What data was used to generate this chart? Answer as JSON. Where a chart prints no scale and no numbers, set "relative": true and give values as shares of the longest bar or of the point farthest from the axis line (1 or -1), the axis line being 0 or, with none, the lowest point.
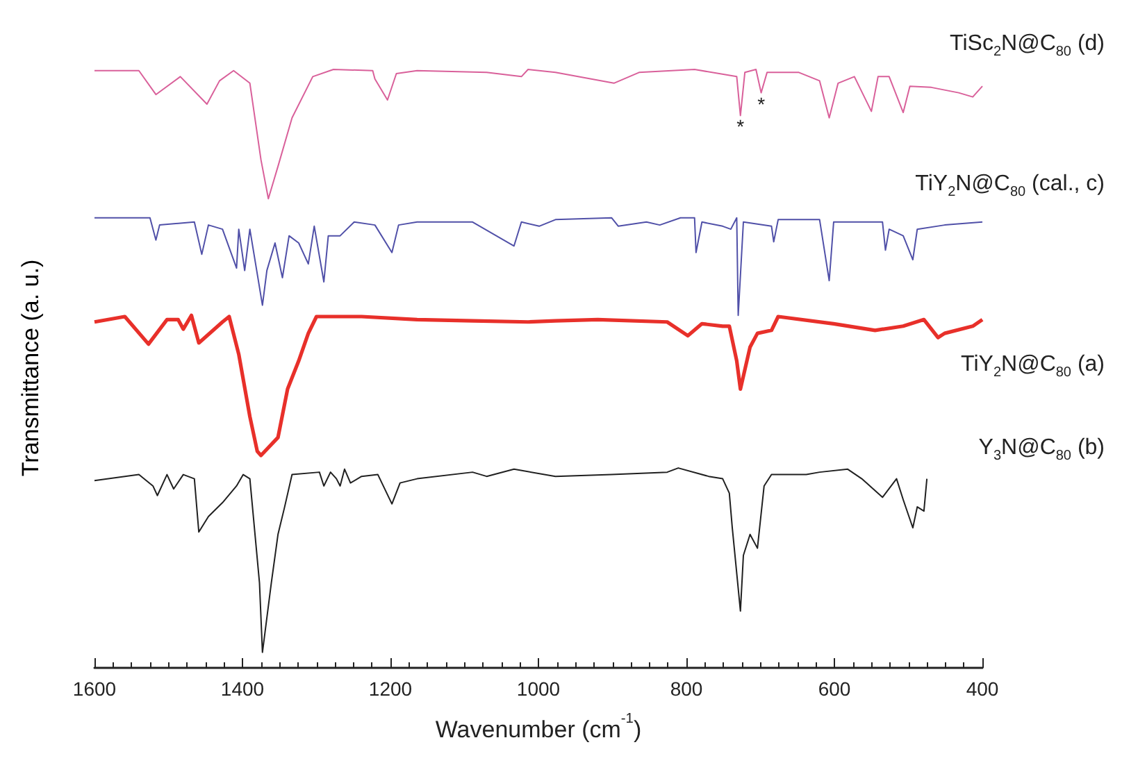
{
  "chart_data": {
    "type": "line",
    "relative": true,
    "xlabel": "Wavenumber (cm$^{-1}$)",
    "ylabel": "Transmittance (a. u.)",
    "xlim": [
      1600,
      400
    ],
    "xticks": [
      1600,
      1400,
      1200,
      1000,
      800,
      600,
      400
    ],
    "grid": false,
    "tick_labels": "x",
    "annotations": [
      {
        "text": "*",
        "x": 727,
        "y": 0.923
      },
      {
        "text": "*",
        "x": 699,
        "y": 0.961
      }
    ],
    "series": [
      {
        "name": "TiSc$_{2}$N@C$_{80}$ (d)",
        "color": "#d9609a",
        "x": [
          1600,
          1540,
          1517,
          1484,
          1448,
          1431,
          1412,
          1390,
          1375,
          1365,
          1352,
          1333,
          1305,
          1277,
          1224,
          1221,
          1204,
          1192,
          1164,
          1070,
          1023,
          1014,
          977,
          898,
          864,
          789,
          732,
          727,
          721,
          706,
          699,
          691,
          648,
          620,
          607,
          595,
          573,
          550,
          541,
          526,
          507,
          498,
          469,
          432,
          413,
          400
        ],
        "values": [
          0.998,
          0.998,
          0.958,
          0.988,
          0.942,
          0.981,
          0.998,
          0.977,
          0.849,
          0.784,
          0.838,
          0.919,
          0.988,
          1.0,
          0.998,
          0.984,
          0.949,
          0.993,
          0.998,
          0.995,
          0.988,
          1.0,
          0.995,
          0.977,
          0.995,
          1.0,
          0.988,
          0.923,
          0.995,
          1.0,
          0.961,
          0.995,
          0.995,
          0.981,
          0.919,
          0.977,
          0.988,
          0.93,
          0.988,
          0.988,
          0.928,
          0.972,
          0.97,
          0.961,
          0.954,
          0.972
        ]
      },
      {
        "name": "TiY$_{2}$N@C$_{80}$ (cal., c)",
        "color": "#5050a8",
        "x": [
          1600,
          1525,
          1517,
          1512,
          1465,
          1455,
          1446,
          1427,
          1408,
          1405,
          1397,
          1390,
          1373,
          1367,
          1356,
          1346,
          1337,
          1324,
          1311,
          1303,
          1290,
          1284,
          1268,
          1249,
          1221,
          1198,
          1189,
          1164,
          1089,
          1033,
          1023,
          999,
          977,
          901,
          892,
          854,
          836,
          808,
          789,
          787,
          779,
          751,
          740,
          732,
          730,
          723,
          685,
          682,
          676,
          620,
          607,
          601,
          535,
          531,
          526,
          507,
          494,
          488,
          451,
          400
        ],
        "values": [
          0.752,
          0.752,
          0.715,
          0.74,
          0.745,
          0.691,
          0.74,
          0.733,
          0.668,
          0.733,
          0.664,
          0.733,
          0.606,
          0.664,
          0.71,
          0.652,
          0.722,
          0.71,
          0.675,
          0.738,
          0.645,
          0.722,
          0.722,
          0.745,
          0.74,
          0.694,
          0.74,
          0.745,
          0.745,
          0.705,
          0.745,
          0.738,
          0.749,
          0.752,
          0.738,
          0.745,
          0.74,
          0.752,
          0.752,
          0.694,
          0.745,
          0.738,
          0.733,
          0.752,
          0.589,
          0.745,
          0.738,
          0.712,
          0.749,
          0.749,
          0.647,
          0.745,
          0.745,
          0.698,
          0.733,
          0.722,
          0.682,
          0.733,
          0.74,
          0.745
        ]
      },
      {
        "name": "TiY$_{2}$N@C$_{80}$ (a)",
        "color": "#e8302a",
        "x": [
          1600,
          1559,
          1527,
          1502,
          1487,
          1480,
          1469,
          1459,
          1427,
          1418,
          1405,
          1390,
          1380,
          1375,
          1352,
          1339,
          1324,
          1311,
          1300,
          1239,
          1164,
          1089,
          1014,
          977,
          920,
          826,
          798,
          779,
          751,
          742,
          732,
          727,
          714,
          704,
          685,
          676,
          601,
          545,
          507,
          479,
          460,
          451,
          413,
          400
        ],
        "values": [
          0.578,
          0.587,
          0.541,
          0.582,
          0.582,
          0.566,
          0.589,
          0.543,
          0.578,
          0.587,
          0.524,
          0.42,
          0.362,
          0.355,
          0.385,
          0.466,
          0.513,
          0.559,
          0.587,
          0.587,
          0.582,
          0.58,
          0.578,
          0.58,
          0.582,
          0.578,
          0.555,
          0.575,
          0.571,
          0.571,
          0.513,
          0.466,
          0.536,
          0.559,
          0.564,
          0.587,
          0.575,
          0.564,
          0.571,
          0.582,
          0.552,
          0.559,
          0.571,
          0.582
        ]
      },
      {
        "name": "Y$_{3}$N@C$_{80}$ (b)",
        "color": "#202020",
        "x": [
          1600,
          1540,
          1521,
          1515,
          1502,
          1493,
          1480,
          1465,
          1459,
          1446,
          1427,
          1408,
          1399,
          1390,
          1377,
          1373,
          1361,
          1352,
          1343,
          1333,
          1296,
          1290,
          1281,
          1273,
          1268,
          1262,
          1254,
          1239,
          1217,
          1198,
          1187,
          1164,
          1089,
          1070,
          1033,
          977,
          901,
          826,
          811,
          770,
          751,
          742,
          738,
          727,
          723,
          714,
          704,
          695,
          685,
          638,
          620,
          582,
          563,
          535,
          516,
          507,
          494,
          488,
          479,
          475
        ],
        "values": [
          0.313,
          0.323,
          0.304,
          0.288,
          0.323,
          0.299,
          0.323,
          0.316,
          0.227,
          0.253,
          0.276,
          0.304,
          0.323,
          0.316,
          0.142,
          0.026,
          0.142,
          0.223,
          0.269,
          0.323,
          0.327,
          0.304,
          0.327,
          0.316,
          0.304,
          0.332,
          0.309,
          0.32,
          0.323,
          0.274,
          0.309,
          0.316,
          0.327,
          0.32,
          0.332,
          0.32,
          0.323,
          0.327,
          0.334,
          0.32,
          0.316,
          0.292,
          0.234,
          0.095,
          0.188,
          0.223,
          0.2,
          0.304,
          0.323,
          0.323,
          0.327,
          0.332,
          0.316,
          0.285,
          0.316,
          0.281,
          0.234,
          0.269,
          0.262,
          0.316
        ]
      }
    ]
  }
}
